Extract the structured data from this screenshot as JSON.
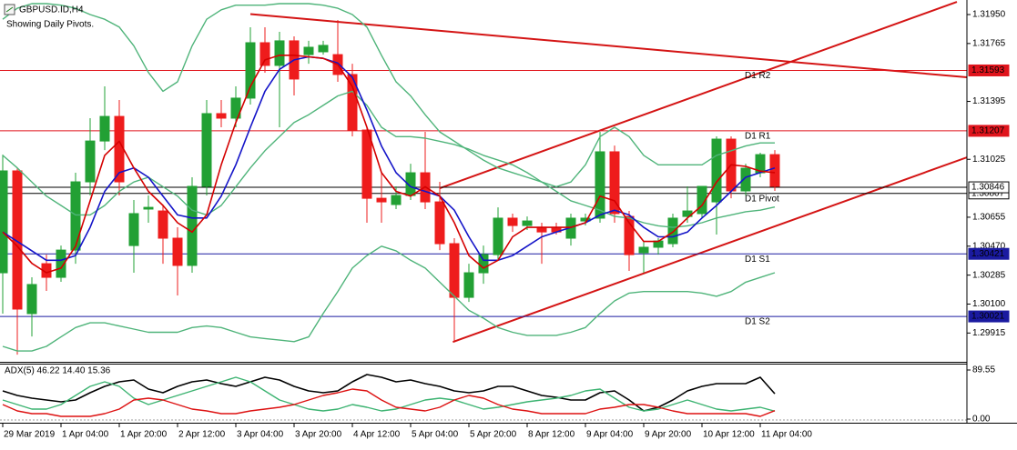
{
  "chart_data": [
    {
      "type": "candlestick",
      "title": "GBPUSD.ID,H4",
      "subtitle": "Showing Daily Pivots.",
      "categories": [
        "29 Mar 2019",
        null,
        null,
        null,
        "1 Apr 04:00",
        null,
        null,
        null,
        "1 Apr 20:00",
        null,
        null,
        null,
        "2 Apr 12:00",
        null,
        null,
        null,
        "3 Apr 04:00",
        null,
        null,
        null,
        "3 Apr 20:00",
        null,
        null,
        null,
        "4 Apr 12:00",
        null,
        null,
        null,
        "5 Apr 04:00",
        null,
        null,
        null,
        "5 Apr 20:00",
        null,
        null,
        null,
        "8 Apr 12:00",
        null,
        null,
        null,
        "9 Apr 04:00",
        null,
        null,
        null,
        "9 Apr 20:00",
        null,
        null,
        null,
        "10 Apr 12:00",
        null,
        null,
        null,
        "11 Apr 04:00",
        null
      ],
      "open": [
        1.303,
        1.30951,
        1.30039,
        1.30358,
        1.30271,
        1.30445,
        1.30881,
        1.31142,
        1.31299,
        1.30474,
        1.30707,
        1.30695,
        1.30521,
        1.30347,
        1.30852,
        1.31317,
        1.31288,
        1.31416,
        1.3177,
        1.31625,
        1.31782,
        1.31694,
        1.31712,
        1.31694,
        1.31567,
        1.31212,
        1.30776,
        1.30736,
        1.30794,
        1.30939,
        1.30753,
        1.30486,
        1.30143,
        1.303,
        1.30416,
        1.30649,
        1.30602,
        1.30591,
        1.30591,
        1.30521,
        1.30631,
        1.30649,
        1.31073,
        1.3066,
        1.30428,
        1.30463,
        1.30486,
        1.3066,
        1.30678,
        1.30753,
        1.31154,
        1.30823,
        1.30939,
        1.31055
      ],
      "high": [
        1.31055,
        1.30968,
        1.30271,
        1.30416,
        1.30474,
        1.30939,
        1.31288,
        1.31491,
        1.31404,
        1.30765,
        1.30794,
        1.30736,
        1.30591,
        1.3091,
        1.31404,
        1.31404,
        1.31491,
        1.31869,
        1.31869,
        1.3184,
        1.31811,
        1.31782,
        1.31782,
        1.31915,
        1.31636,
        1.3123,
        1.30939,
        1.30852,
        1.30997,
        1.31201,
        1.30881,
        1.30521,
        1.30358,
        1.30474,
        1.30718,
        1.30678,
        1.3066,
        1.3062,
        1.3062,
        1.30678,
        1.30678,
        1.31201,
        1.31113,
        1.30695,
        1.30503,
        1.30521,
        1.30678,
        1.30852,
        1.30852,
        1.31172,
        1.31172,
        1.30997,
        1.31067,
        1.31084
      ],
      "low": [
        1.30039,
        1.29777,
        1.29893,
        1.30184,
        1.30242,
        1.30358,
        1.30794,
        1.31084,
        1.30794,
        1.303,
        1.3062,
        1.30358,
        1.30155,
        1.303,
        1.30794,
        1.3123,
        1.3123,
        1.31375,
        1.31578,
        1.3123,
        1.31433,
        1.31636,
        1.31694,
        1.3152,
        1.31172,
        1.3062,
        1.3062,
        1.30707,
        1.30765,
        1.30707,
        1.30445,
        1.29864,
        1.30114,
        1.3023,
        1.30387,
        1.30561,
        1.30573,
        1.30358,
        1.30544,
        1.30474,
        1.30602,
        1.3062,
        1.3062,
        1.30312,
        1.303,
        1.30416,
        1.30463,
        1.3062,
        1.30649,
        1.30544,
        1.30776,
        1.30794,
        1.3091,
        1.30823
      ],
      "close": [
        1.30951,
        1.30068,
        1.30225,
        1.30271,
        1.30445,
        1.30881,
        1.31142,
        1.31299,
        1.30881,
        1.30678,
        1.30718,
        1.30521,
        1.30347,
        1.30852,
        1.31317,
        1.31288,
        1.31416,
        1.3177,
        1.31625,
        1.31782,
        1.31538,
        1.31741,
        1.31753,
        1.31567,
        1.31212,
        1.30776,
        1.30753,
        1.30794,
        1.30939,
        1.30753,
        1.30486,
        1.30143,
        1.303,
        1.30416,
        1.30649,
        1.30602,
        1.30631,
        1.30561,
        1.30561,
        1.30649,
        1.30649,
        1.31073,
        1.30678,
        1.30416,
        1.30463,
        1.30503,
        1.30649,
        1.30695,
        1.30852,
        1.31154,
        1.30823,
        1.30968,
        1.31055,
        1.30852
      ],
      "up_color": "#22a034",
      "down_color": "#ee1c1c",
      "series": [
        {
          "color": "#4fb47a",
          "values": [
            1.3192,
            1.3199,
            1.3202,
            1.3202,
            1.3201,
            1.3199,
            1.3195,
            1.3192,
            1.3187,
            1.3175,
            1.3158,
            1.3146,
            1.3152,
            1.3175,
            1.3192,
            1.3198,
            1.3201,
            1.3201,
            1.3201,
            1.3202,
            1.3202,
            1.3202,
            1.3201,
            1.3199,
            1.3195,
            1.3187,
            1.3169,
            1.3152,
            1.3143,
            1.3131,
            1.312,
            1.3114,
            1.3108,
            1.3102,
            1.3097,
            1.3094,
            1.3091,
            1.3088,
            1.3085,
            1.3088,
            1.3099,
            1.3117,
            1.3123,
            1.3117,
            1.3105,
            1.3099,
            1.3099,
            1.3099,
            1.3099,
            1.3105,
            1.3108,
            1.3111,
            1.3113,
            1.3113
          ]
        },
        {
          "color": "#4fb47a",
          "values": [
            1.3105,
            1.3097,
            1.3088,
            1.3079,
            1.3073,
            1.3067,
            1.3067,
            1.3073,
            1.3082,
            1.3088,
            1.3091,
            1.3085,
            1.3079,
            1.307,
            1.3067,
            1.3073,
            1.3085,
            1.3097,
            1.3108,
            1.3117,
            1.3126,
            1.3131,
            1.3137,
            1.3143,
            1.3146,
            1.3137,
            1.3123,
            1.3117,
            1.3117,
            1.3116,
            1.3114,
            1.3112,
            1.3109,
            1.3105,
            1.3102,
            1.3099,
            1.3094,
            1.3088,
            1.3082,
            1.3076,
            1.3073,
            1.307,
            1.3066,
            1.3065,
            1.3062,
            1.306,
            1.3059,
            1.306,
            1.3062,
            1.3065,
            1.3067,
            1.3069,
            1.307,
            1.3072
          ]
        },
        {
          "color": "#4fb47a",
          "values": [
            1.2983,
            1.298,
            1.298,
            1.2983,
            1.2989,
            1.2995,
            1.2998,
            1.2998,
            1.2996,
            1.2994,
            1.2992,
            1.2992,
            1.2992,
            1.2995,
            1.2996,
            1.2995,
            1.2992,
            1.2989,
            1.2988,
            1.2987,
            1.2986,
            1.2989,
            1.3004,
            1.3018,
            1.3033,
            1.3041,
            1.3047,
            1.3044,
            1.3038,
            1.3033,
            1.3024,
            1.3015,
            1.3006,
            1.3001,
            1.2995,
            1.2992,
            1.299,
            1.299,
            1.299,
            1.2992,
            1.2995,
            1.3004,
            1.3012,
            1.3017,
            1.3018,
            1.3018,
            1.3018,
            1.3018,
            1.3017,
            1.3015,
            1.3018,
            1.3024,
            1.3027,
            1.303
          ]
        },
        {
          "color": "#1414c8",
          "values": [
            1.3056,
            1.305,
            1.3044,
            1.3038,
            1.3038,
            1.3041,
            1.3059,
            1.3082,
            1.3094,
            1.3097,
            1.3091,
            1.3079,
            1.3067,
            1.3065,
            1.3065,
            1.3079,
            1.3099,
            1.3123,
            1.3146,
            1.316,
            1.3166,
            1.3168,
            1.3167,
            1.3164,
            1.3155,
            1.3134,
            1.3111,
            1.3094,
            1.3085,
            1.3082,
            1.3079,
            1.307,
            1.3053,
            1.3038,
            1.3038,
            1.3041,
            1.3047,
            1.3053,
            1.3056,
            1.3059,
            1.3062,
            1.3067,
            1.307,
            1.3067,
            1.3059,
            1.3053,
            1.3053,
            1.3056,
            1.3065,
            1.3073,
            1.3082,
            1.3091,
            1.3094,
            1.3097
          ]
        },
        {
          "color": "#d40000",
          "values": [
            1.3056,
            1.3047,
            1.3036,
            1.303,
            1.3033,
            1.3047,
            1.3076,
            1.3105,
            1.3114,
            1.3097,
            1.3082,
            1.3073,
            1.3062,
            1.3056,
            1.3067,
            1.3099,
            1.3126,
            1.3149,
            1.3166,
            1.3169,
            1.3169,
            1.3168,
            1.3167,
            1.3163,
            1.3149,
            1.3123,
            1.3094,
            1.3082,
            1.3079,
            1.3085,
            1.3079,
            1.3062,
            1.3041,
            1.3033,
            1.3038,
            1.3053,
            1.3059,
            1.3059,
            1.3059,
            1.3059,
            1.3062,
            1.3079,
            1.3076,
            1.3062,
            1.305,
            1.305,
            1.3056,
            1.3065,
            1.3073,
            1.3088,
            1.3099,
            1.3098,
            1.3095,
            1.3094
          ]
        }
      ],
      "pivots": [
        {
          "label": "D1 R2",
          "value": 1.31593,
          "color": "#e0141c"
        },
        {
          "label": "D1 R1",
          "value": 1.31207,
          "color": "#e0141c"
        },
        {
          "label": "D1 Pivot",
          "value": 1.30807,
          "color": "#000000"
        },
        {
          "label": "D1 S1",
          "value": 1.30421,
          "color": "#1a1aa0"
        },
        {
          "label": "D1 S2",
          "value": 1.30021,
          "color": "#1a1aa0"
        }
      ],
      "price": 1.30846,
      "trendlines": [
        {
          "x": [
            17,
            66.2
          ],
          "y": [
            1.31953,
            1.31549
          ],
          "color": "#d41414"
        },
        {
          "x": [
            30,
            65.5
          ],
          "y": [
            1.3084,
            1.32031
          ],
          "color": "#d41414"
        },
        {
          "x": [
            30.9,
            66.2
          ],
          "y": [
            1.29858,
            1.31038
          ],
          "color": "#d41414"
        }
      ],
      "ylim": [
        1.29731,
        1.32043
      ],
      "yticks": [
        {
          "value": 1.3195,
          "label": "1.31950"
        },
        1.31765,
        1.31395,
        1.31025,
        1.30655,
        {
          "value": 1.3047,
          "label": "1.30470"
        },
        1.30285,
        {
          "value": 1.301,
          "label": "1.30100"
        },
        1.29915
      ]
    },
    {
      "type": "line",
      "title": "ADX(5) 46.22 14.40 15.36",
      "series": [
        {
          "color": "#000000",
          "values": [
            51.4,
            43.1,
            38.1,
            34.8,
            31.5,
            34.8,
            48.1,
            59.7,
            68.0,
            71.3,
            54.7,
            48.1,
            59.7,
            68.0,
            71.3,
            64.7,
            59.7,
            68.0,
            76.3,
            71.3,
            59.7,
            51.4,
            48.1,
            51.4,
            68.0,
            81.2,
            76.3,
            68.0,
            71.3,
            64.7,
            59.7,
            51.4,
            48.1,
            51.4,
            59.7,
            59.7,
            51.4,
            43.1,
            39.8,
            34.8,
            34.8,
            48.1,
            51.4,
            34.8,
            14.9,
            21.6,
            34.8,
            51.4,
            59.7,
            64.7,
            64.7,
            64.7,
            76.3,
            46.22
          ]
        },
        {
          "color": "#3cb371",
          "values": [
            34.8,
            26.5,
            18.2,
            18.2,
            26.5,
            43.1,
            59.7,
            68.0,
            59.7,
            38.1,
            26.5,
            34.8,
            43.1,
            51.4,
            59.7,
            68.0,
            76.3,
            68.0,
            51.4,
            34.8,
            26.5,
            18.2,
            14.9,
            18.2,
            26.5,
            21.6,
            14.9,
            18.2,
            26.5,
            34.8,
            38.1,
            34.8,
            26.5,
            18.2,
            21.6,
            26.5,
            31.5,
            34.8,
            38.1,
            43.1,
            51.4,
            54.7,
            38.1,
            21.6,
            14.9,
            18.2,
            26.5,
            34.8,
            26.5,
            18.2,
            14.9,
            18.2,
            21.6,
            14.4
          ]
        },
        {
          "color": "#dd1111",
          "values": [
            26.5,
            14.9,
            9.9,
            9.9,
            5.0,
            5.0,
            5.0,
            9.9,
            18.2,
            34.8,
            38.1,
            34.8,
            26.5,
            18.2,
            14.9,
            9.9,
            9.9,
            14.9,
            18.2,
            21.6,
            26.5,
            34.8,
            43.1,
            48.1,
            54.7,
            51.4,
            34.8,
            21.6,
            18.2,
            14.9,
            21.6,
            34.8,
            43.1,
            38.1,
            26.5,
            18.2,
            14.9,
            9.9,
            9.9,
            9.9,
            9.9,
            18.2,
            21.6,
            26.5,
            26.5,
            21.6,
            14.9,
            9.9,
            9.9,
            9.9,
            9.9,
            9.9,
            5.0,
            15.36
          ]
        }
      ],
      "ylim": [
        0,
        89.55
      ],
      "yticks": [
        89.55,
        {
          "value": 0,
          "label": "0.00"
        }
      ]
    }
  ]
}
